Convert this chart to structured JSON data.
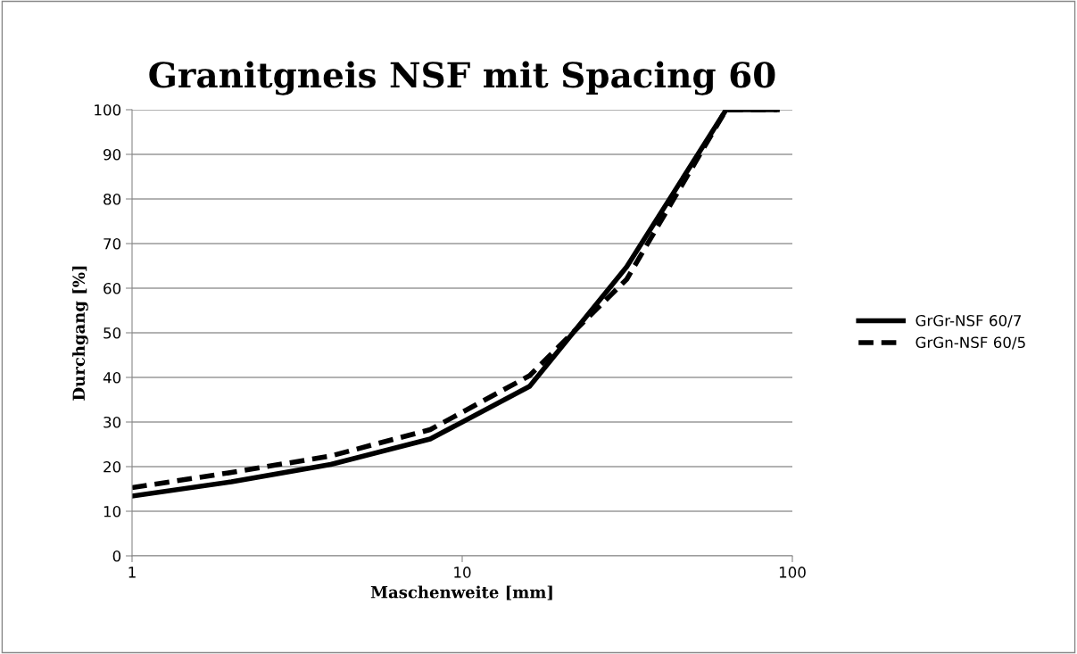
{
  "chart_data": {
    "type": "line",
    "title": "Granitgneis NSF mit Spacing 60",
    "xlabel": "Maschenweite [mm]",
    "ylabel": "Durchgang [%]",
    "log": "x",
    "x": [
      1,
      2,
      4,
      8,
      16,
      31.5,
      63,
      90
    ],
    "series": [
      {
        "name": "GrGr-NSF 60/7",
        "color": "#000000",
        "line_style": "solid",
        "values": [
          13.4,
          16.6,
          20.5,
          26.2,
          38,
          64.8,
          100,
          100
        ]
      },
      {
        "name": "GrGn-NSF 60/5",
        "color": "#000000",
        "line_style": "dashed",
        "values": [
          15.3,
          18.7,
          22.4,
          28.3,
          40.4,
          62,
          100,
          100
        ]
      }
    ],
    "xlim": [
      1,
      100
    ],
    "xticks": [
      1,
      10,
      100
    ],
    "ylim": [
      0,
      100
    ],
    "yticks": [
      0,
      10,
      20,
      30,
      40,
      50,
      60,
      70,
      80,
      90,
      100
    ],
    "grid": "y",
    "legend": "right",
    "marker": "none"
  }
}
